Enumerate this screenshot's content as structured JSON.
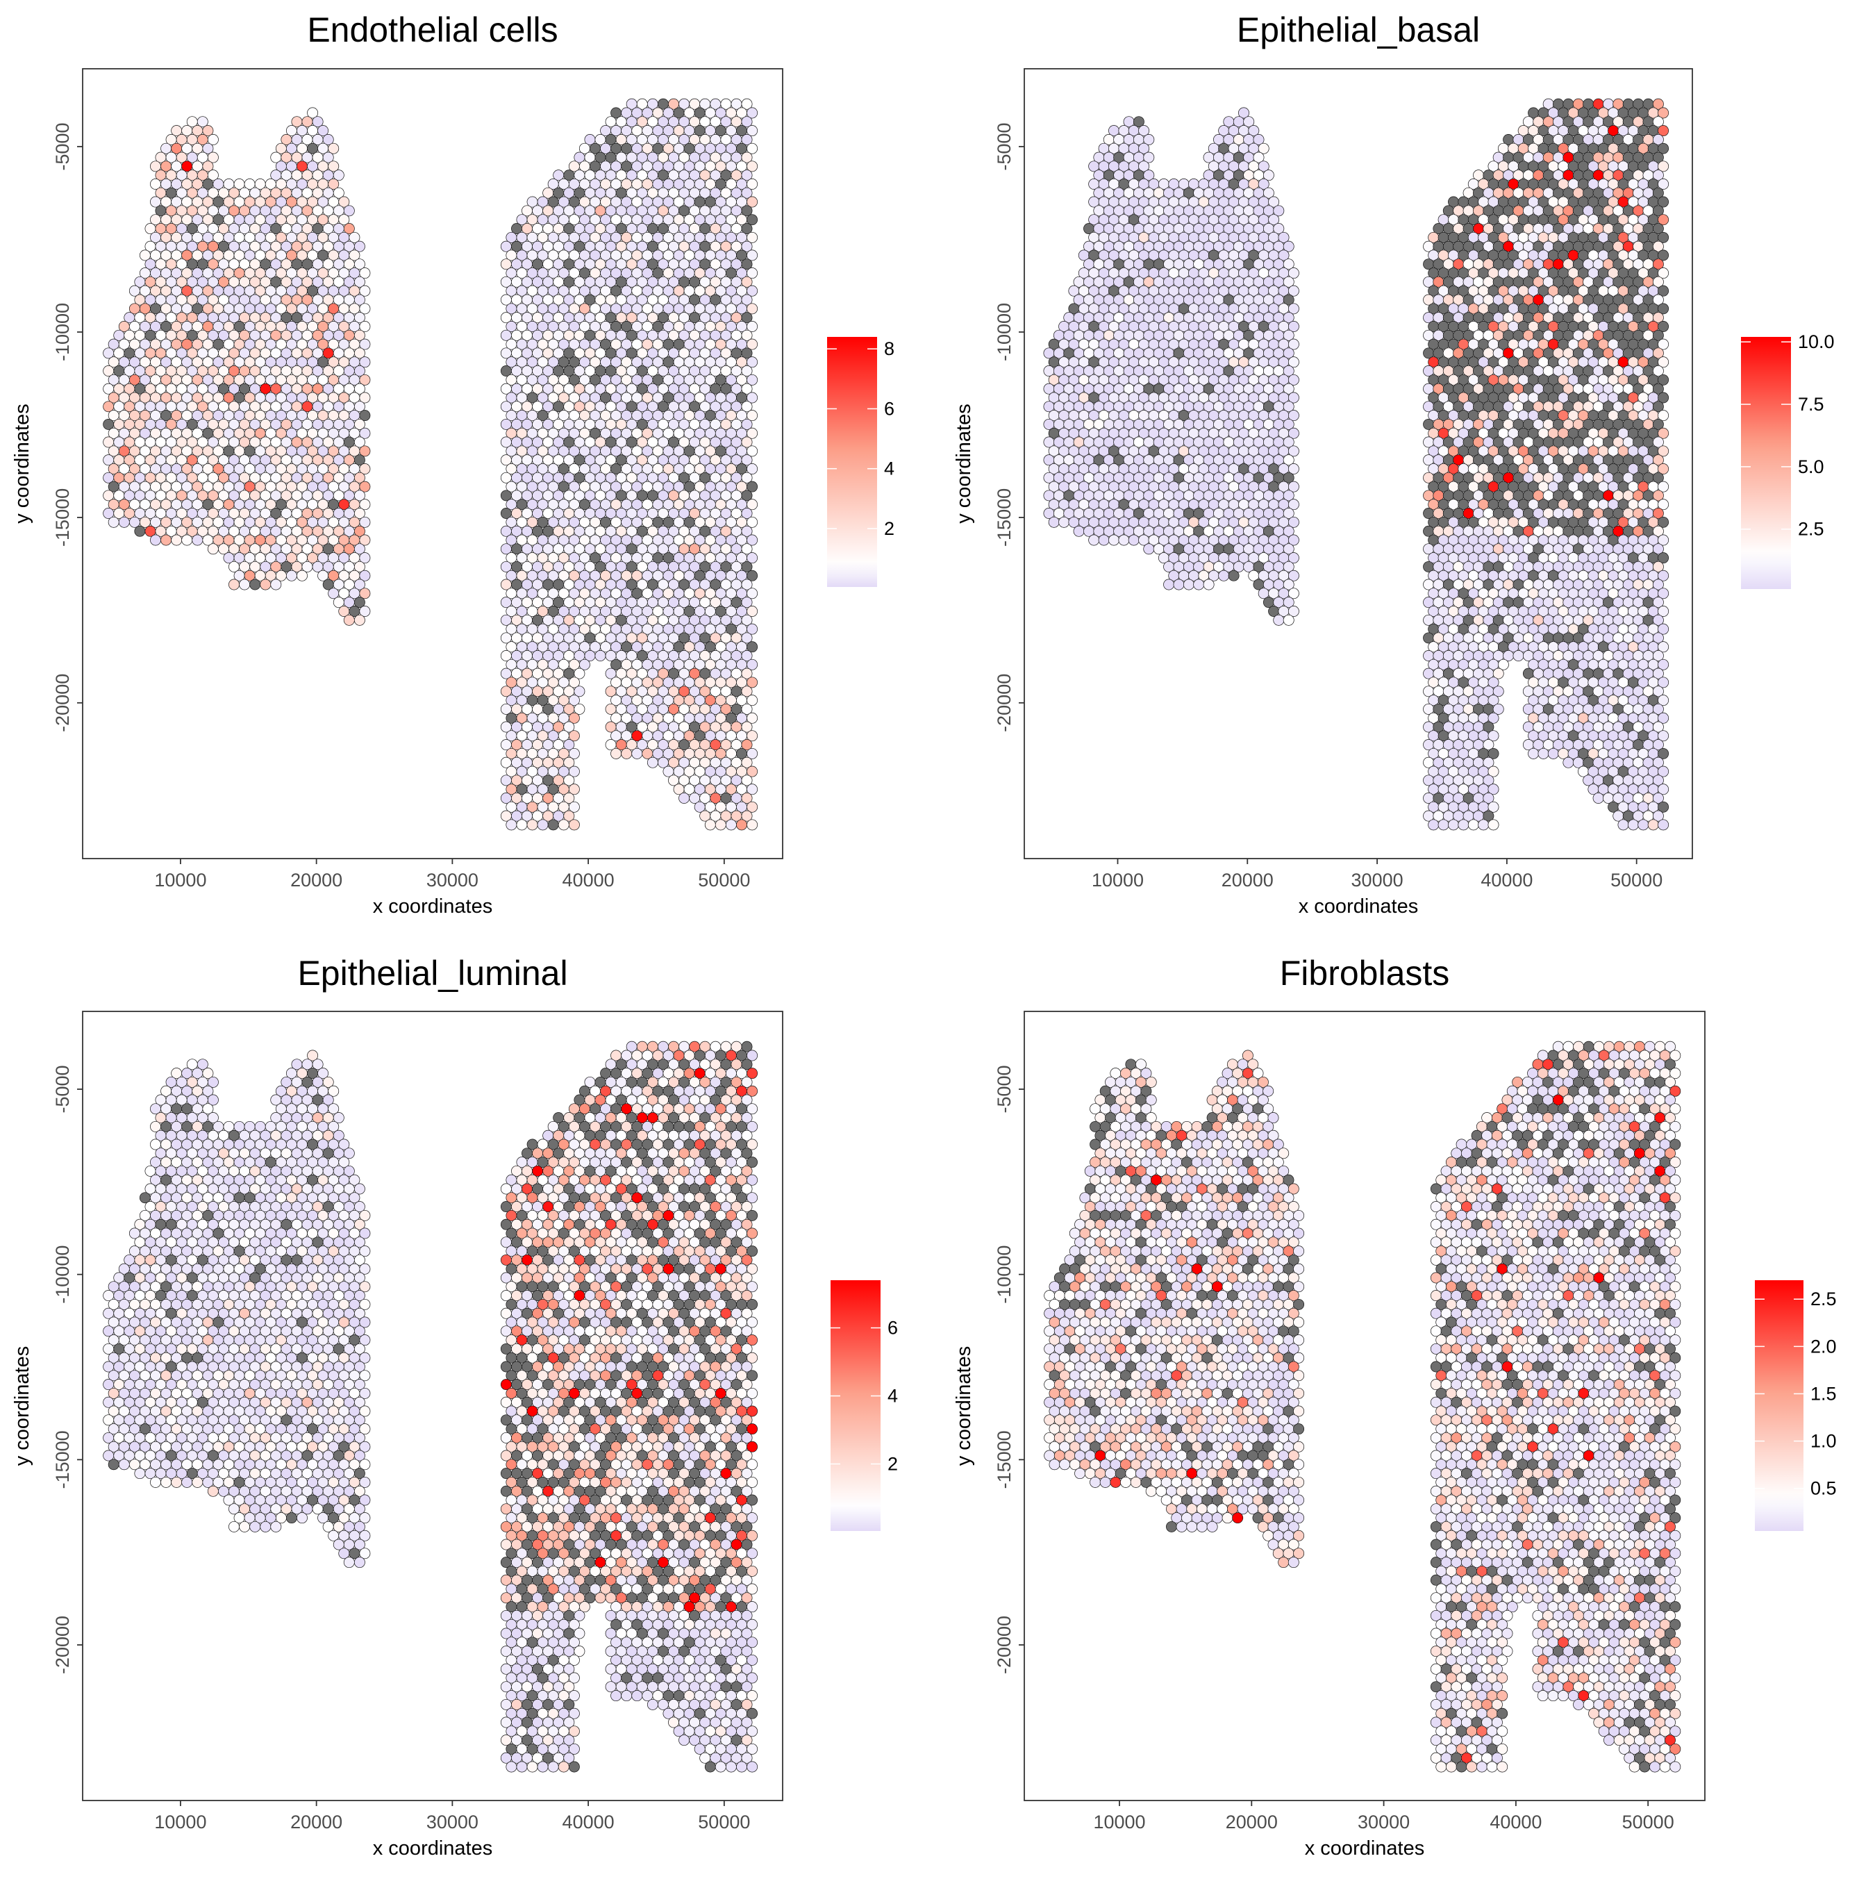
{
  "chart_data": [
    {
      "type": "scatter",
      "title": "Endothelial cells",
      "xlabel": "x coordinates",
      "ylabel": "y coordinates",
      "xlim": [
        2800,
        54300
      ],
      "ylim": [
        -24200,
        -2900
      ],
      "x_ticks": [
        10000,
        20000,
        30000,
        40000,
        50000
      ],
      "x_tick_labels": [
        "10000",
        "20000",
        "30000",
        "40000",
        "50000"
      ],
      "y_ticks": [
        -5000,
        -10000,
        -15000,
        -20000
      ],
      "y_tick_labels": [
        "-5000",
        "-10000",
        "-15000",
        "-20000"
      ],
      "colorbar": {
        "min": 0.05,
        "max": 8.4,
        "white_point": 0.8,
        "ticks": [
          2,
          4,
          6,
          8
        ],
        "tick_labels": [
          "2",
          "4",
          "6",
          "8"
        ]
      },
      "regions": {
        "left": [
          {
            "y_above": -99999,
            "na_rate": 0.06,
            "mean": 1.3
          }
        ],
        "right": [
          {
            "y_above": -19000,
            "na_rate": 0.13,
            "mean": 0.55
          },
          {
            "y_above": -99999,
            "na_rate": 0.08,
            "mean": 1.2
          }
        ]
      }
    },
    {
      "type": "scatter",
      "title": "Epithelial_basal",
      "xlabel": "x coordinates",
      "ylabel": "y coordinates",
      "xlim": [
        2800,
        54300
      ],
      "ylim": [
        -24200,
        -2900
      ],
      "x_ticks": [
        10000,
        20000,
        30000,
        40000,
        50000
      ],
      "x_tick_labels": [
        "10000",
        "20000",
        "30000",
        "40000",
        "50000"
      ],
      "y_ticks": [
        -5000,
        -10000,
        -15000,
        -20000
      ],
      "y_tick_labels": [
        "-5000",
        "-10000",
        "-15000",
        "-20000"
      ],
      "colorbar": {
        "min": 0.1,
        "max": 10.2,
        "white_point": 1.5,
        "ticks": [
          2.5,
          5.0,
          7.5,
          10.0
        ],
        "tick_labels": [
          "2.5",
          "5.0",
          "7.5",
          "10.0"
        ]
      },
      "regions": {
        "left": [
          {
            "y_above": -99999,
            "na_rate": 0.07,
            "mean": 0.45
          }
        ],
        "right": [
          {
            "y_above": -15500,
            "na_rate": 0.42,
            "mean": 2.8
          },
          {
            "y_above": -99999,
            "na_rate": 0.1,
            "mean": 0.6
          }
        ]
      }
    },
    {
      "type": "scatter",
      "title": "Epithelial_luminal",
      "xlabel": "x coordinates",
      "ylabel": "y coordinates",
      "xlim": [
        2800,
        54300
      ],
      "ylim": [
        -24200,
        -2900
      ],
      "x_ticks": [
        10000,
        20000,
        30000,
        40000,
        50000
      ],
      "x_tick_labels": [
        "10000",
        "20000",
        "30000",
        "40000",
        "50000"
      ],
      "y_ticks": [
        -5000,
        -10000,
        -15000,
        -20000
      ],
      "y_tick_labels": [
        "-5000",
        "-10000",
        "-15000",
        "-20000"
      ],
      "colorbar": {
        "min": 0.03,
        "max": 7.4,
        "white_point": 0.8,
        "ticks": [
          2,
          4,
          6
        ],
        "tick_labels": [
          "2",
          "4",
          "6"
        ]
      },
      "regions": {
        "left": [
          {
            "y_above": -99999,
            "na_rate": 0.06,
            "mean": 0.5
          }
        ],
        "right": [
          {
            "y_above": -19000,
            "na_rate": 0.25,
            "mean": 1.8
          },
          {
            "y_above": -99999,
            "na_rate": 0.1,
            "mean": 0.35
          }
        ]
      }
    },
    {
      "type": "scatter",
      "title": "Fibroblasts",
      "xlabel": "x coordinates",
      "ylabel": "y coordinates",
      "xlim": [
        2800,
        54300
      ],
      "ylim": [
        -24200,
        -2900
      ],
      "x_ticks": [
        10000,
        20000,
        30000,
        40000,
        50000
      ],
      "x_tick_labels": [
        "10000",
        "20000",
        "30000",
        "40000",
        "50000"
      ],
      "y_ticks": [
        -5000,
        -10000,
        -15000,
        -20000
      ],
      "y_tick_labels": [
        "-5000",
        "-10000",
        "-15000",
        "-20000"
      ],
      "colorbar": {
        "min": 0.05,
        "max": 2.7,
        "white_point": 0.4,
        "ticks": [
          0.5,
          1.0,
          1.5,
          2.0,
          2.5
        ],
        "tick_labels": [
          "0.5",
          "1.0",
          "1.5",
          "2.0",
          "2.5"
        ]
      },
      "regions": {
        "left": [
          {
            "y_above": -99999,
            "na_rate": 0.12,
            "mean": 0.5
          }
        ],
        "right": [
          {
            "y_above": -99999,
            "na_rate": 0.12,
            "mean": 0.45
          }
        ]
      }
    }
  ],
  "tissue": {
    "spot_pitch_x": 770,
    "spot_pitch_y": 240,
    "left_outline": [
      [
        4700,
        -15100
      ],
      [
        4700,
        -10100
      ],
      [
        6000,
        -9500
      ],
      [
        7200,
        -8000
      ],
      [
        8000,
        -6700
      ],
      [
        8000,
        -5200
      ],
      [
        10300,
        -4300
      ],
      [
        12300,
        -4300
      ],
      [
        12900,
        -5900
      ],
      [
        16500,
        -5900
      ],
      [
        17400,
        -4700
      ],
      [
        19600,
        -3900
      ],
      [
        21000,
        -4600
      ],
      [
        21800,
        -5900
      ],
      [
        23600,
        -8100
      ],
      [
        23600,
        -17700
      ],
      [
        22500,
        -17900
      ],
      [
        19800,
        -16300
      ],
      [
        19500,
        -16600
      ],
      [
        16900,
        -16900
      ],
      [
        13800,
        -16900
      ],
      [
        13200,
        -15900
      ],
      [
        7600,
        -15600
      ]
    ],
    "right_outline": [
      [
        33700,
        -7800
      ],
      [
        35500,
        -6600
      ],
      [
        42700,
        -3800
      ],
      [
        52300,
        -3800
      ],
      [
        52300,
        -23400
      ],
      [
        48900,
        -23400
      ],
      [
        46200,
        -22200
      ],
      [
        44500,
        -21600
      ],
      [
        41400,
        -21600
      ],
      [
        41400,
        -18900
      ],
      [
        40000,
        -18900
      ],
      [
        39200,
        -20500
      ],
      [
        39000,
        -23400
      ],
      [
        34200,
        -23400
      ],
      [
        33700,
        -22800
      ]
    ]
  },
  "colors": {
    "low": "#E3DAF7",
    "mid": "#FFFFFF",
    "high": "#FF0000",
    "na": "#6E6E6E",
    "axis_text": "#4D4D4D"
  }
}
